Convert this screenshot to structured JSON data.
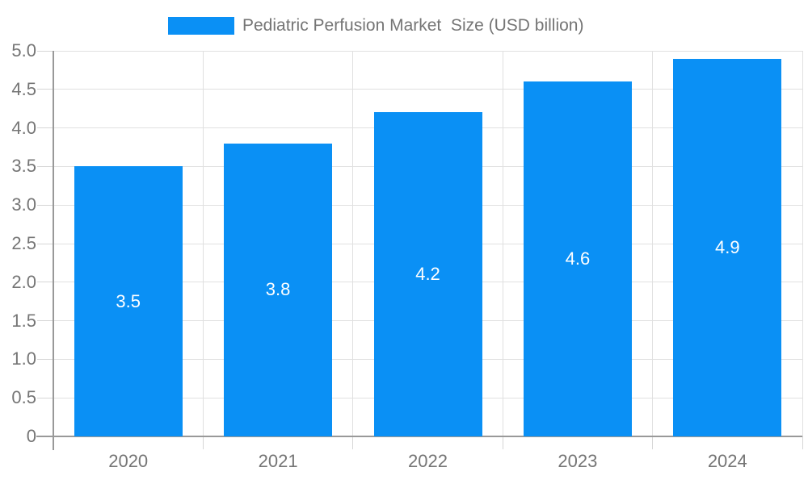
{
  "legend": {
    "label": "Pediatric Perfusion Market  Size (USD billion)"
  },
  "colors": {
    "bar": "#0a90f5",
    "axis_line": "#999999",
    "grid_line": "#e0e0e0",
    "tick_line": "#d6d6d6",
    "text": "#757575",
    "bar_label_text": "#ffffff",
    "background": "#ffffff"
  },
  "chart_data": {
    "type": "bar",
    "title": "Pediatric Perfusion Market  Size (USD billion)",
    "series": [
      {
        "name": "Pediatric Perfusion Market  Size (USD billion)",
        "values": [
          3.5,
          3.8,
          4.2,
          4.6,
          4.9
        ]
      }
    ],
    "categories": [
      "2020",
      "2021",
      "2022",
      "2023",
      "2024"
    ],
    "bar_labels": [
      "3.5",
      "3.8",
      "4.2",
      "4.6",
      "4.9"
    ],
    "xlabel": "",
    "ylabel": "",
    "ylim": [
      0,
      5.0
    ],
    "ytick_step": 0.5,
    "ytick_labels": [
      "0",
      "0.5",
      "1.0",
      "1.5",
      "2.0",
      "2.5",
      "3.0",
      "3.5",
      "4.0",
      "4.5",
      "5.0"
    ],
    "grid": true,
    "legend_position": "top-center"
  }
}
